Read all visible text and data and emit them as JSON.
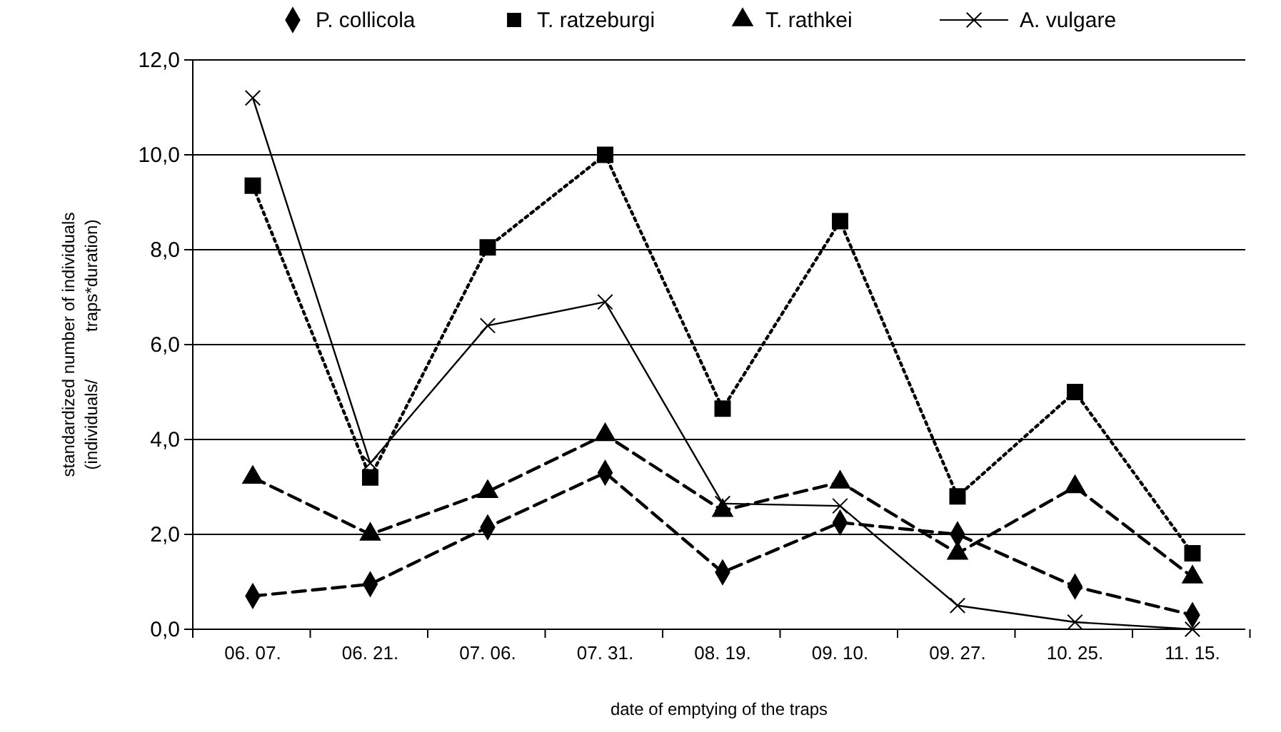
{
  "chart_data": {
    "type": "line",
    "xlabel": "date of emptying of the traps",
    "ylabel": "standardized number of individuals\n(individuals/          traps*duration)",
    "categories": [
      "06. 07.",
      "06. 21.",
      "07. 06.",
      "07. 31.",
      "08. 19.",
      "09. 10.",
      "09. 27.",
      "10. 25.",
      "11. 15."
    ],
    "ylim": [
      0,
      12
    ],
    "yticks": [
      {
        "value": 0,
        "label": "0,0"
      },
      {
        "value": 2,
        "label": "2,0"
      },
      {
        "value": 4,
        "label": "4,0"
      },
      {
        "value": 6,
        "label": "6,0"
      },
      {
        "value": 8,
        "label": "8,0"
      },
      {
        "value": 10,
        "label": "10,0"
      },
      {
        "value": 12,
        "label": "12,0"
      }
    ],
    "grid": "y",
    "legend": "top",
    "series": [
      {
        "name": "P. collicola",
        "color": "#000000",
        "marker": "diamond",
        "line_style": "dashed",
        "values": [
          0.7,
          0.95,
          2.15,
          3.3,
          1.2,
          2.25,
          2.0,
          0.9,
          0.3
        ]
      },
      {
        "name": "T. ratzeburgi",
        "color": "#000000",
        "marker": "square",
        "line_style": "dotted",
        "values": [
          9.35,
          3.2,
          8.05,
          10.0,
          4.65,
          8.6,
          2.8,
          5.0,
          1.6
        ]
      },
      {
        "name": "T. rathkei",
        "color": "#000000",
        "marker": "triangle",
        "line_style": "dashed",
        "values": [
          3.2,
          2.0,
          2.9,
          4.1,
          2.5,
          3.1,
          1.6,
          3.0,
          1.1
        ]
      },
      {
        "name": "A. vulgare",
        "color": "#000000",
        "marker": "cross",
        "line_style": "solid",
        "values": [
          11.2,
          3.5,
          6.4,
          6.9,
          2.65,
          2.6,
          0.5,
          0.15,
          0.0
        ]
      }
    ]
  }
}
